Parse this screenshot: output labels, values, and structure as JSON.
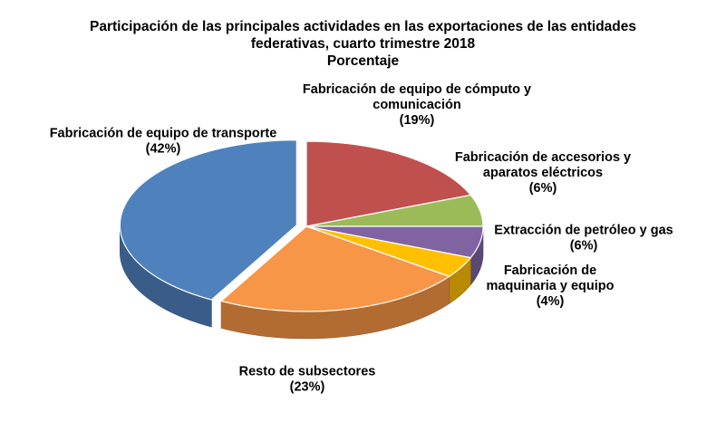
{
  "chart_data": {
    "type": "pie",
    "title": [
      "Participación de las principales actividades en las exportaciones de las entidades",
      "federativas, cuarto trimestre 2018",
      "Porcentaje"
    ],
    "slices": [
      {
        "label": "Fabricación de equipo de cómputo y comunicación",
        "label_lines": [
          "Fabricación de equipo de cómputo y",
          "comunicación"
        ],
        "value": 19,
        "value_label": "(19%)",
        "color": "#C0504D",
        "exploded": false
      },
      {
        "label": "Fabricación de accesorios y aparatos eléctricos",
        "label_lines": [
          "Fabricación de accesorios y",
          "aparatos eléctricos"
        ],
        "value": 6,
        "value_label": "(6%)",
        "color": "#9BBB59",
        "exploded": false
      },
      {
        "label": "Extracción de petróleo y gas",
        "label_lines": [
          "Extracción de petróleo y gas"
        ],
        "value": 6,
        "value_label": "(6%)",
        "color": "#8064A2",
        "exploded": false
      },
      {
        "label": "Fabricación de maquinaria y equipo",
        "label_lines": [
          "Fabricación de",
          "maquinaria y equipo"
        ],
        "value": 4,
        "value_label": "(4%)",
        "color": "#FFC000",
        "exploded": false
      },
      {
        "label": "Resto de subsectores",
        "label_lines": [
          "Resto de subsectores"
        ],
        "value": 23,
        "value_label": "(23%)",
        "color": "#F79646",
        "exploded": false
      },
      {
        "label": "Fabricación de equipo de transporte",
        "label_lines": [
          "Fabricación de equipo de transporte"
        ],
        "value": 42,
        "value_label": "(42%)",
        "color": "#4F81BD",
        "exploded": true
      }
    ],
    "style": "3d-pie",
    "legend": "none"
  }
}
